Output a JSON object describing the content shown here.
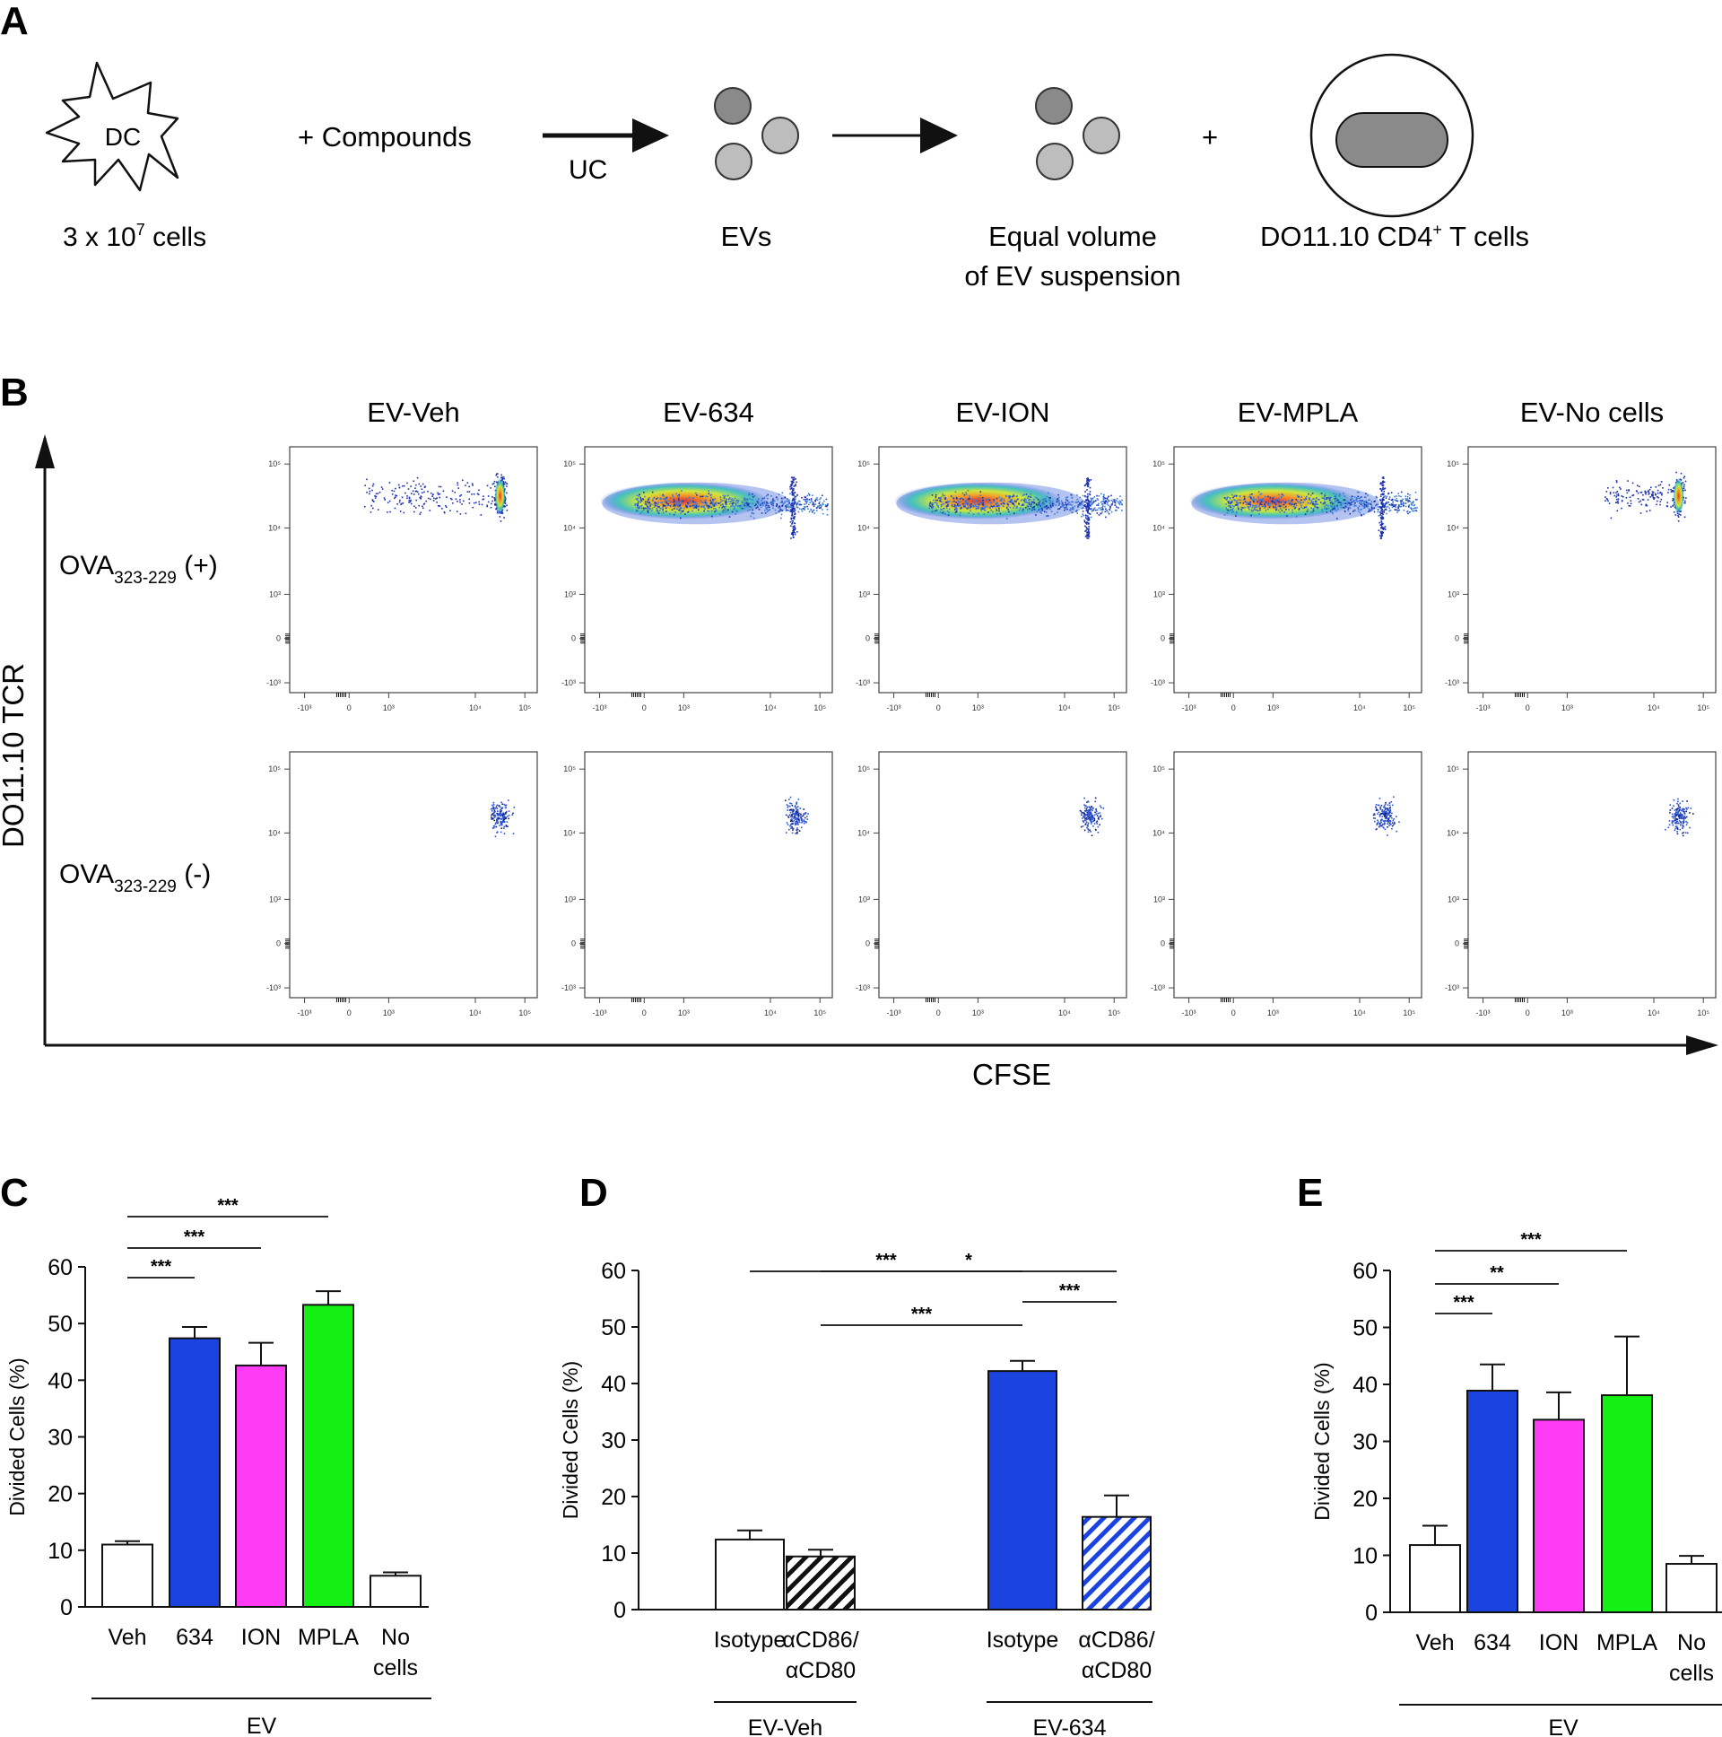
{
  "panel_letters": {
    "a": "A",
    "b": "B",
    "c": "C",
    "d": "D",
    "e": "E"
  },
  "panel_a": {
    "dc_label": "DC",
    "cells_count": "3 x 10",
    "cells_exp": "7",
    "cells_suffix": " cells",
    "compounds": "+ Compounds",
    "uc": "UC",
    "evs": "EVs",
    "equal_line1": "Equal volume",
    "equal_line2": "of EV suspension",
    "plus": "+",
    "tcell_prefix": "DO11.10 CD4",
    "tcell_sup": "+",
    "tcell_suffix": " T cells",
    "colors": {
      "ev_dark": "#8a8a8a",
      "ev_light": "#bdbdbd",
      "tcell_nucleus": "#8a8a8a"
    }
  },
  "panel_b": {
    "y_axis_label": "DO11.10 TCR",
    "x_axis_label": "CFSE",
    "columns": [
      "EV-Veh",
      "EV-634",
      "EV-ION",
      "EV-MPLA",
      "EV-No cells"
    ],
    "row_plus_main": "OVA",
    "row_plus_sub": "323-229",
    "row_plus_tail": " (+)",
    "row_minus_main": "OVA",
    "row_minus_sub": "323-229",
    "row_minus_tail": " (-)",
    "x_tick_labels": [
      "-10³",
      "0",
      "10³",
      "10⁴",
      "10⁵"
    ],
    "y_tick_labels": [
      "10⁵",
      "10⁴",
      "10³",
      "0",
      "-10³"
    ]
  },
  "chart_data": [
    {
      "id": "C",
      "type": "bar",
      "ylabel": "Divided Cells (%)",
      "ylim": [
        0,
        60
      ],
      "yticks": [
        0,
        10,
        20,
        30,
        40,
        50,
        60
      ],
      "categories": [
        "Veh",
        "634",
        "ION",
        "MPLA",
        "No\ncells"
      ],
      "values": [
        11,
        47.4,
        42.6,
        53.3,
        5.5
      ],
      "errors": [
        0.6,
        2.0,
        4.0,
        2.4,
        0.6
      ],
      "fills": [
        "#ffffff",
        "#1a43e0",
        "#ff3cf5",
        "#14f014",
        "#ffffff"
      ],
      "patterns": [
        "none",
        "none",
        "none",
        "none",
        "none"
      ],
      "group_label": "EV",
      "significance": [
        {
          "from": 0,
          "to": 1,
          "label": "***"
        },
        {
          "from": 0,
          "to": 2,
          "label": "***"
        },
        {
          "from": 0,
          "to": 3,
          "label": "***"
        }
      ]
    },
    {
      "id": "D",
      "type": "bar",
      "ylabel": "Divided Cells (%)",
      "ylim": [
        0,
        60
      ],
      "yticks": [
        0,
        10,
        20,
        30,
        40,
        50,
        60
      ],
      "categories": [
        "Isotype",
        "αCD86/\nαCD80",
        "Isotype",
        "αCD86/\nαCD80"
      ],
      "values": [
        12.4,
        9.4,
        42.2,
        16.4
      ],
      "errors": [
        1.6,
        1.2,
        1.8,
        3.8
      ],
      "fills": [
        "#ffffff",
        "#ffffff",
        "#1a43e0",
        "#ffffff"
      ],
      "patterns": [
        "none",
        "hatch-black",
        "none",
        "hatch-blue"
      ],
      "groups": [
        {
          "label": "EV-Veh",
          "members": [
            0,
            1
          ]
        },
        {
          "label": "EV-634",
          "members": [
            2,
            3
          ]
        }
      ],
      "significance": [
        {
          "from": 1,
          "to": 2,
          "label": "***"
        },
        {
          "from": 2,
          "to": 3,
          "label": "***"
        },
        {
          "from": 0,
          "to": 2,
          "label": "***"
        },
        {
          "from": 1,
          "to": 3,
          "label": "*"
        }
      ]
    },
    {
      "id": "E",
      "type": "bar",
      "ylabel": "Divided Cells (%)",
      "ylim": [
        0,
        60
      ],
      "yticks": [
        0,
        10,
        20,
        30,
        40,
        50,
        60
      ],
      "categories": [
        "Veh",
        "634",
        "ION",
        "MPLA",
        "No\ncells"
      ],
      "values": [
        11.8,
        38.9,
        33.8,
        38.1,
        8.5
      ],
      "errors": [
        3.4,
        4.6,
        4.8,
        10.3,
        1.4
      ],
      "fills": [
        "#ffffff",
        "#1a43e0",
        "#ff3cf5",
        "#14f014",
        "#ffffff"
      ],
      "patterns": [
        "none",
        "none",
        "none",
        "none",
        "none"
      ],
      "group_label": "EV",
      "significance": [
        {
          "from": 0,
          "to": 1,
          "label": "***"
        },
        {
          "from": 0,
          "to": 2,
          "label": "**"
        },
        {
          "from": 0,
          "to": 3,
          "label": "***"
        }
      ]
    }
  ]
}
